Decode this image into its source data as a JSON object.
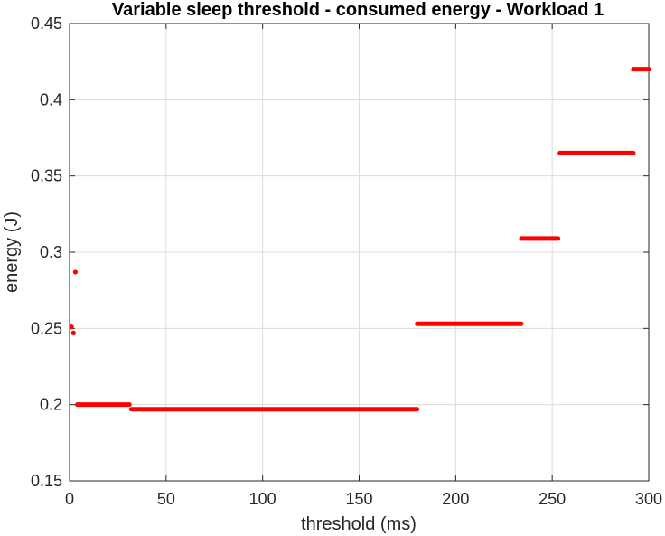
{
  "chart_data": {
    "type": "scatter",
    "title": "Variable sleep threshold - consumed energy  - Workload 1",
    "xlabel": "threshold (ms)",
    "ylabel": "energy (J)",
    "xlim": [
      0,
      300
    ],
    "ylim": [
      0.15,
      0.45
    ],
    "xticks": [
      0,
      50,
      100,
      150,
      200,
      250,
      300
    ],
    "yticks": [
      0.15,
      0.2,
      0.25,
      0.3,
      0.35,
      0.4,
      0.45
    ],
    "xtick_labels": [
      "0",
      "50",
      "100",
      "150",
      "200",
      "250",
      "300"
    ],
    "ytick_labels": [
      "0.15",
      "0.2",
      "0.25",
      "0.3",
      "0.35",
      "0.4",
      "0.45"
    ],
    "grid": true,
    "marker_color": "#ff0000",
    "points": [
      {
        "x": 1,
        "y": 0.251
      },
      {
        "x": 2,
        "y": 0.247
      },
      {
        "x": 3,
        "y": 0.287
      }
    ],
    "segments": [
      {
        "x_start": 4,
        "x_end": 31,
        "y": 0.2
      },
      {
        "x_start": 32,
        "x_end": 180,
        "y": 0.197
      },
      {
        "x_start": 180,
        "x_end": 234,
        "y": 0.253
      },
      {
        "x_start": 234,
        "x_end": 253,
        "y": 0.309
      },
      {
        "x_start": 254,
        "x_end": 292,
        "y": 0.365
      },
      {
        "x_start": 292,
        "x_end": 300,
        "y": 0.42
      }
    ]
  }
}
